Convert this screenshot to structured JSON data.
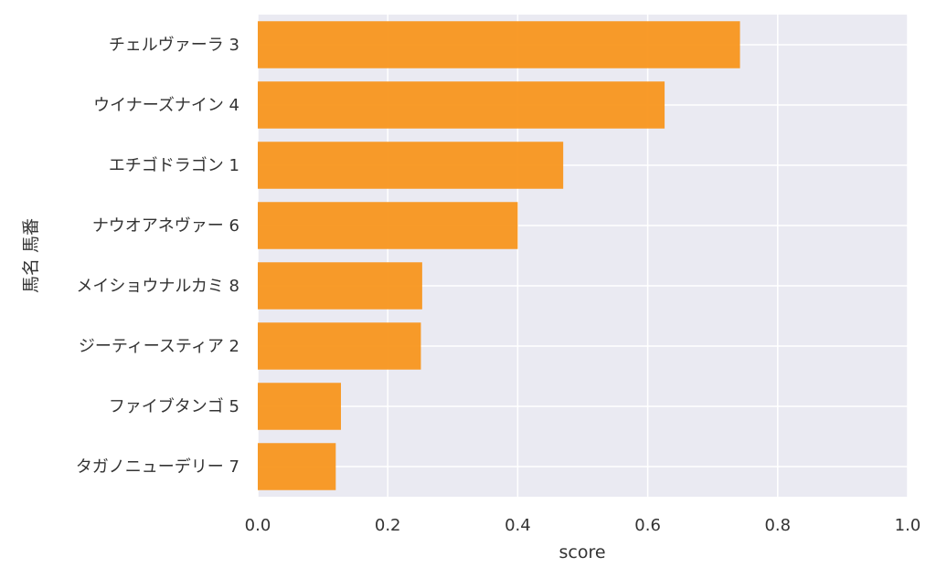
{
  "chart_data": {
    "type": "bar",
    "orientation": "horizontal",
    "categories": [
      "チェルヴァーラ 3",
      "ウイナーズナイン 4",
      "エチゴドラゴン 1",
      "ナウオアネヴァー 6",
      "メイショウナルカミ 8",
      "ジーティースティア 2",
      "ファイブタンゴ 5",
      "タガノニューデリー 7"
    ],
    "values": [
      0.742,
      0.626,
      0.47,
      0.4,
      0.253,
      0.251,
      0.128,
      0.12
    ],
    "xlabel": "score",
    "ylabel": "馬名 馬番",
    "xlim": [
      0,
      1.0
    ],
    "xticks": [
      "0.0",
      "0.2",
      "0.4",
      "0.6",
      "0.8",
      "1.0"
    ],
    "grid": true,
    "colors": {
      "bar": "#f8961e",
      "background": "#eaeaf2",
      "grid": "#ffffff"
    }
  }
}
